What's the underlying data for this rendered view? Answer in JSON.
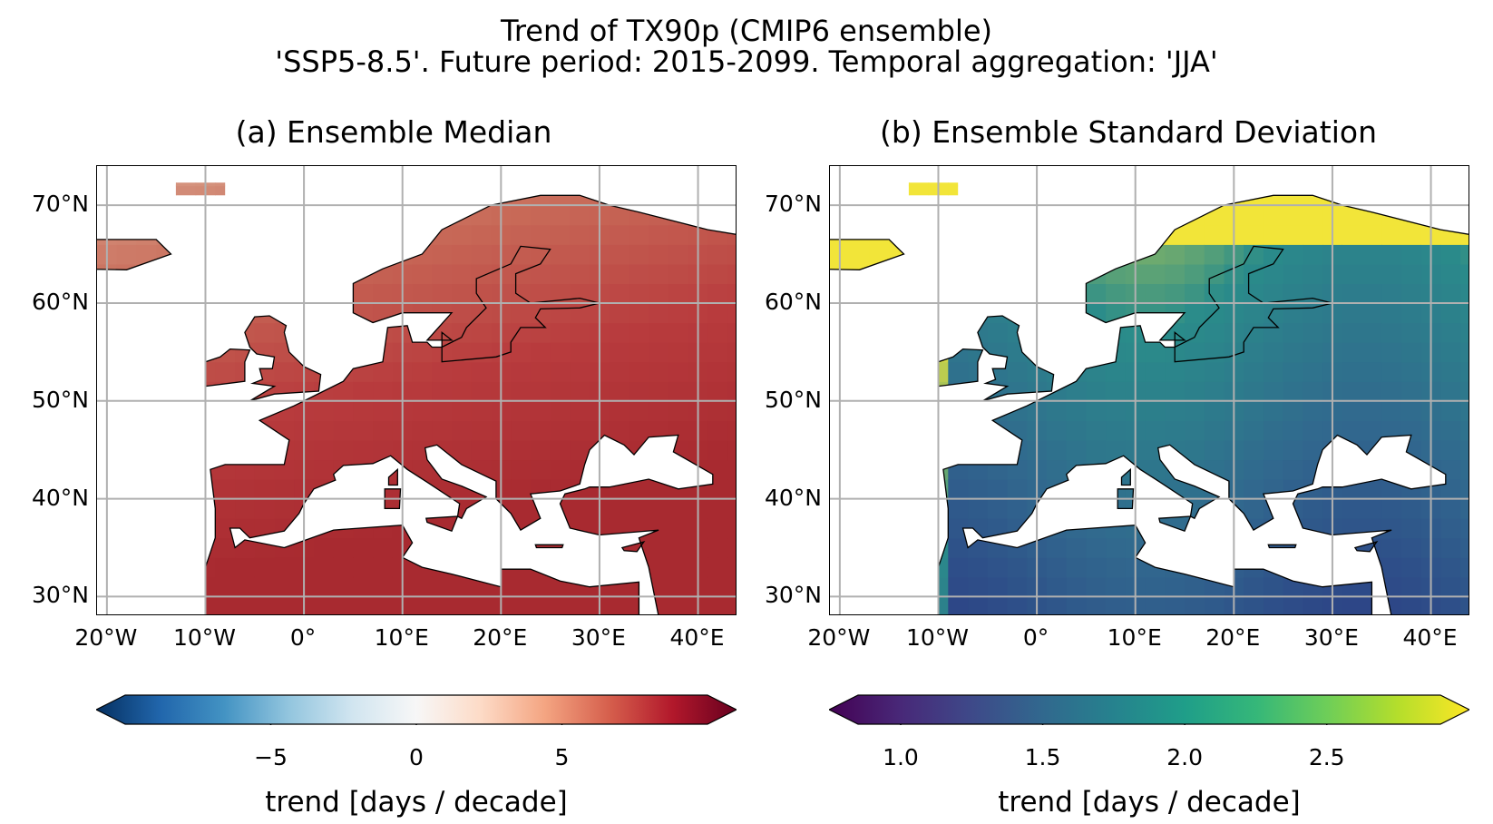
{
  "suptitle": "Trend of TX90p (CMIP6 ensemble)",
  "subtitle": "'SSP5-8.5'. Future period: 2015-2099. Temporal aggregation: 'JJA'",
  "panels": [
    {
      "title": "(a) Ensemble Median",
      "cmap": "RdBu_r",
      "colorbar": {
        "ticks": [
          "−5",
          "0",
          "5"
        ],
        "tick_values": [
          -5,
          0,
          5
        ],
        "range": [
          -10,
          10
        ],
        "extend": "both",
        "label": "trend [days / decade]"
      },
      "colors": [
        "#d9a08a",
        "#c86a58",
        "#b83b3d",
        "#a82a30"
      ]
    },
    {
      "title": "(b) Ensemble Standard Deviation",
      "cmap": "viridis",
      "colorbar": {
        "ticks": [
          "1.0",
          "1.5",
          "2.0",
          "2.5"
        ],
        "tick_values": [
          1.0,
          1.5,
          2.0,
          2.5
        ],
        "range": [
          0.85,
          2.9
        ],
        "extend": "both",
        "label": "trend [days / decade]"
      },
      "colors": [
        "#2c3e85",
        "#31688e",
        "#2a8c8a",
        "#f2e539"
      ]
    }
  ],
  "axes": {
    "lon_ticks": [
      "20°W",
      "10°W",
      "0°",
      "10°E",
      "20°E",
      "30°E",
      "40°E"
    ],
    "lat_ticks": [
      "70°N",
      "60°N",
      "50°N",
      "40°N",
      "30°N"
    ],
    "lon_values": [
      -20,
      -10,
      0,
      10,
      20,
      30,
      40
    ],
    "lat_values": [
      70,
      60,
      50,
      40,
      30
    ],
    "extent": {
      "lon": [
        -21,
        44
      ],
      "lat": [
        28,
        74
      ]
    }
  },
  "chart_data": [
    {
      "type": "heatmap",
      "title": "(a) Ensemble Median",
      "variable": "trend of TX90p",
      "units": "days / decade",
      "xlim": [
        -21,
        44
      ],
      "ylim": [
        28,
        74
      ],
      "colormap": "RdBu_r",
      "color_range": [
        -10,
        10
      ]
    },
    {
      "type": "heatmap",
      "title": "(b) Ensemble Standard Deviation",
      "variable": "trend of TX90p",
      "units": "days / decade",
      "xlim": [
        -21,
        44
      ],
      "ylim": [
        28,
        74
      ],
      "colormap": "viridis",
      "color_range": [
        0.85,
        2.9
      ]
    }
  ]
}
